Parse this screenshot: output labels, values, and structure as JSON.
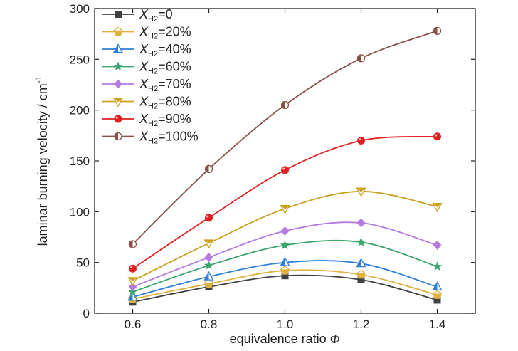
{
  "chart_data": {
    "type": "line",
    "xlabel": "equivalence ratio",
    "xlabel_symbol": "Φ",
    "ylabel": "laminar burning velocity / cm",
    "ylabel_superscript": "-1",
    "xlim": [
      0.5,
      1.5
    ],
    "ylim": [
      0,
      300
    ],
    "x": [
      0.6,
      0.8,
      1.0,
      1.2,
      1.4
    ],
    "x_tick_labels": [
      "0.6",
      "0.8",
      "1.0",
      "1.2",
      "1.4"
    ],
    "y_tick_labels": [
      "0",
      "50",
      "100",
      "150",
      "200",
      "250",
      "300"
    ],
    "y_ticks": [
      0,
      50,
      100,
      150,
      200,
      250,
      300
    ],
    "grid": false,
    "legend_position": "top-left",
    "series": [
      {
        "label_main": "X",
        "label_sub": "H2",
        "label_value": "=0",
        "color": "#404040",
        "marker": "square",
        "values": [
          11,
          26,
          37,
          33,
          13
        ]
      },
      {
        "label_main": "X",
        "label_sub": "H2",
        "label_value": "=20%",
        "color": "#e0b040",
        "marker": "pentagon",
        "values": [
          14,
          29,
          42,
          38,
          18
        ]
      },
      {
        "label_main": "X",
        "label_sub": "H2",
        "label_value": "=40%",
        "color": "#2f7fd6",
        "marker": "triangle-up",
        "values": [
          16,
          36,
          50,
          49,
          26
        ]
      },
      {
        "label_main": "X",
        "label_sub": "H2",
        "label_value": "=60%",
        "color": "#3aa66e",
        "marker": "star",
        "values": [
          21,
          47,
          67,
          70,
          46
        ]
      },
      {
        "label_main": "X",
        "label_sub": "H2",
        "label_value": "=70%",
        "color": "#b67be0",
        "marker": "diamond",
        "values": [
          26,
          55,
          81,
          89,
          67
        ]
      },
      {
        "label_main": "X",
        "label_sub": "H2",
        "label_value": "=80%",
        "color": "#c9a020",
        "marker": "triangle-down",
        "values": [
          32,
          69,
          103,
          120,
          105
        ]
      },
      {
        "label_main": "X",
        "label_sub": "H2",
        "label_value": "=90%",
        "color": "#e02020",
        "marker": "circle",
        "values": [
          44,
          94,
          141,
          170,
          174
        ]
      },
      {
        "label_main": "X",
        "label_sub": "H2",
        "label_value": "=100%",
        "color": "#8b5048",
        "marker": "half-circle",
        "values": [
          68,
          142,
          205,
          251,
          278
        ]
      }
    ]
  }
}
